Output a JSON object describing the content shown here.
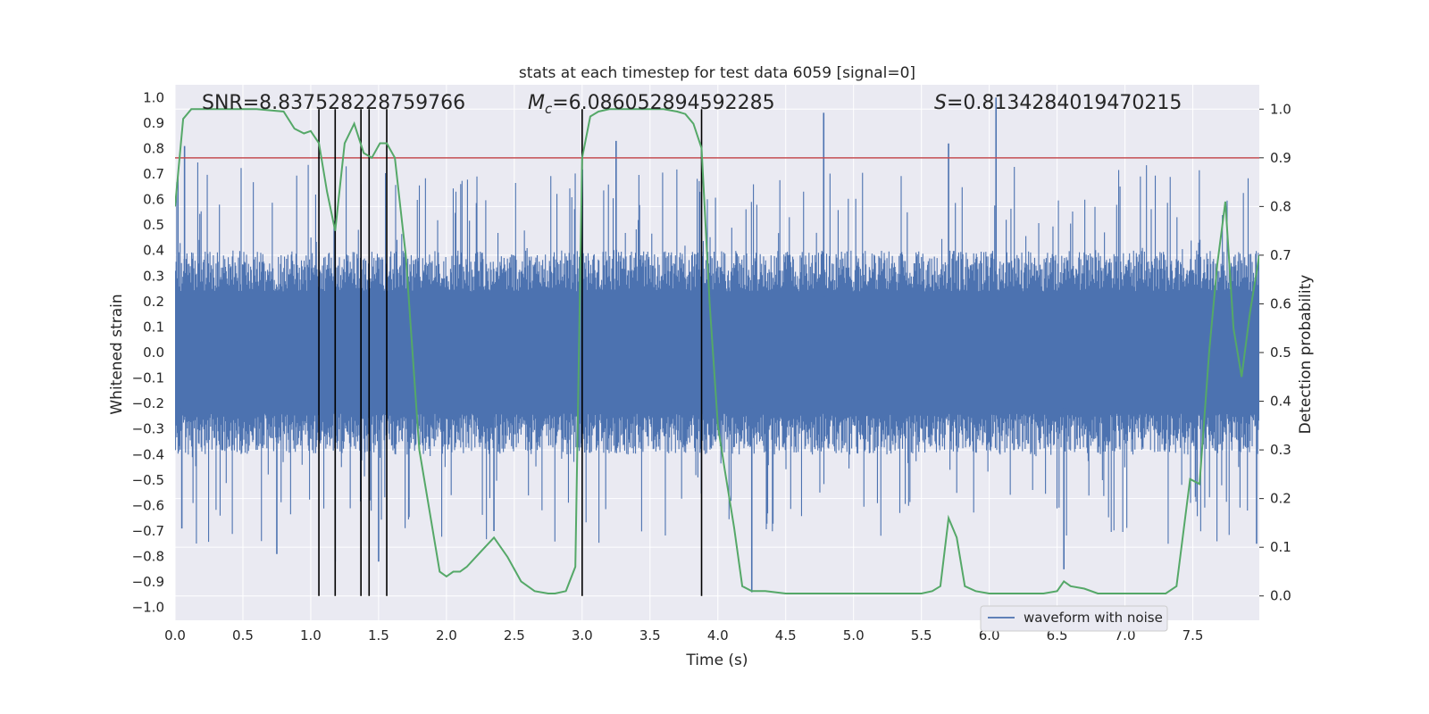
{
  "chart_data": {
    "type": "line",
    "title": "stats at each timestep for test data 6059 [signal=0]",
    "xlabel": "Time (s)",
    "ylabel": "Whitened strain",
    "ylabel_right": "Detection probability",
    "xlim": [
      0.0,
      7.99
    ],
    "ylim": [
      -1.05,
      1.05
    ],
    "ylim_right": [
      -0.05,
      1.05
    ],
    "x_ticks": [
      "0.0",
      "0.5",
      "1.0",
      "1.5",
      "2.0",
      "2.5",
      "3.0",
      "3.5",
      "4.0",
      "4.5",
      "5.0",
      "5.5",
      "6.0",
      "6.5",
      "7.0",
      "7.5"
    ],
    "y_ticks": [
      "1.0",
      "0.9",
      "0.8",
      "0.7",
      "0.6",
      "0.5",
      "0.4",
      "0.3",
      "0.2",
      "0.1",
      "0.0",
      "-0.1",
      "-0.2",
      "-0.3",
      "-0.4",
      "-0.5",
      "-0.6",
      "-0.7",
      "-0.8",
      "-0.9",
      "-1.0"
    ],
    "y_ticks_right": [
      "1.0",
      "0.9",
      "0.8",
      "0.7",
      "0.6",
      "0.5",
      "0.4",
      "0.3",
      "0.2",
      "0.1",
      "0.0"
    ],
    "grid": true,
    "legend": {
      "label": "waveform with noise",
      "position": "lower-right"
    },
    "annotations": {
      "snr": "SNR=8.837528228759766",
      "mc_symbol": "M",
      "mc_sub": "c",
      "mc_value": "=6.086052894592285",
      "s_symbol": "S",
      "s_value": "=0.8134284019470215"
    },
    "threshold_right": 0.9,
    "vertical_markers_x": [
      1.06,
      1.18,
      1.37,
      1.43,
      1.56,
      3.0,
      3.88
    ],
    "series": [
      {
        "name": "waveform with noise",
        "axis": "left",
        "color": "#4c72b0",
        "style": "dense noise",
        "typical_envelope": [
          -0.4,
          0.4
        ],
        "peaks": [
          {
            "x": 0.07,
            "y": 0.81
          },
          {
            "x": 0.05,
            "y": -0.69
          },
          {
            "x": 0.75,
            "y": -0.79
          },
          {
            "x": 1.18,
            "y": -0.82
          },
          {
            "x": 1.5,
            "y": -0.82
          },
          {
            "x": 2.35,
            "y": -0.7
          },
          {
            "x": 3.25,
            "y": 0.83
          },
          {
            "x": 4.25,
            "y": -0.94
          },
          {
            "x": 4.78,
            "y": 0.94
          },
          {
            "x": 5.7,
            "y": 0.82
          },
          {
            "x": 6.05,
            "y": 1.0
          },
          {
            "x": 6.55,
            "y": -0.85
          },
          {
            "x": 7.97,
            "y": -0.75
          }
        ]
      },
      {
        "name": "detection probability",
        "axis": "right",
        "color": "#55a868",
        "x": [
          0.0,
          0.06,
          0.12,
          0.2,
          0.4,
          0.6,
          0.8,
          0.88,
          0.95,
          1.0,
          1.06,
          1.12,
          1.18,
          1.25,
          1.32,
          1.39,
          1.45,
          1.51,
          1.56,
          1.62,
          1.7,
          1.8,
          1.95,
          2.0,
          2.05,
          2.1,
          2.15,
          2.25,
          2.35,
          2.45,
          2.55,
          2.65,
          2.75,
          2.8,
          2.88,
          2.95,
          3.0,
          3.06,
          3.12,
          3.2,
          3.4,
          3.6,
          3.7,
          3.76,
          3.82,
          3.88,
          3.94,
          4.0,
          4.05,
          4.12,
          4.18,
          4.25,
          4.35,
          4.5,
          4.7,
          4.9,
          5.1,
          5.3,
          5.5,
          5.58,
          5.64,
          5.7,
          5.76,
          5.82,
          5.9,
          6.0,
          6.08,
          6.2,
          6.4,
          6.5,
          6.55,
          6.6,
          6.7,
          6.8,
          7.0,
          7.2,
          7.3,
          7.38,
          7.48,
          7.55,
          7.62,
          7.68,
          7.74,
          7.8,
          7.86,
          7.92,
          7.99
        ],
        "y": [
          0.8,
          0.98,
          1.0,
          1.0,
          1.0,
          1.0,
          0.995,
          0.96,
          0.95,
          0.955,
          0.93,
          0.83,
          0.75,
          0.93,
          0.97,
          0.91,
          0.9,
          0.93,
          0.93,
          0.9,
          0.7,
          0.3,
          0.05,
          0.04,
          0.05,
          0.05,
          0.06,
          0.09,
          0.12,
          0.08,
          0.03,
          0.01,
          0.005,
          0.005,
          0.01,
          0.06,
          0.9,
          0.985,
          0.995,
          1.0,
          1.0,
          1.0,
          0.995,
          0.99,
          0.97,
          0.92,
          0.6,
          0.35,
          0.26,
          0.14,
          0.02,
          0.01,
          0.01,
          0.005,
          0.005,
          0.005,
          0.005,
          0.005,
          0.005,
          0.01,
          0.02,
          0.16,
          0.12,
          0.02,
          0.01,
          0.005,
          0.005,
          0.005,
          0.005,
          0.01,
          0.03,
          0.02,
          0.015,
          0.005,
          0.005,
          0.005,
          0.005,
          0.02,
          0.24,
          0.23,
          0.5,
          0.68,
          0.81,
          0.55,
          0.45,
          0.58,
          0.7
        ]
      }
    ]
  }
}
